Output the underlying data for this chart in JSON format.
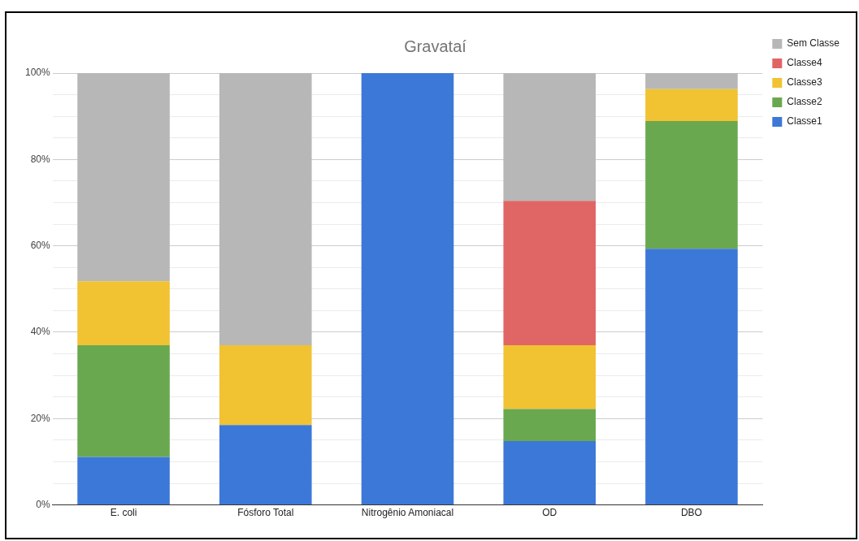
{
  "chart_data": {
    "type": "bar",
    "title": "Gravataí",
    "stacked": true,
    "categories": [
      "E. coli",
      "Fósforo Total",
      "Nitrogênio Amoniacal",
      "OD",
      "DBO"
    ],
    "series": [
      {
        "name": "Classe1",
        "color": "#3c78d8",
        "values": [
          11.1,
          18.5,
          100,
          14.8,
          59.3
        ]
      },
      {
        "name": "Classe2",
        "color": "#6aa84f",
        "values": [
          25.9,
          0,
          0,
          7.4,
          29.6
        ]
      },
      {
        "name": "Classe3",
        "color": "#f1c232",
        "values": [
          14.8,
          18.5,
          0,
          14.8,
          7.4
        ]
      },
      {
        "name": "Classe4",
        "color": "#e06666",
        "values": [
          0,
          0,
          0,
          33.4,
          0
        ]
      },
      {
        "name": "Sem Classe",
        "color": "#b7b7b7",
        "values": [
          48.2,
          63,
          0,
          29.6,
          3.7
        ]
      }
    ],
    "ylim": [
      0,
      100
    ],
    "yticks": [
      {
        "value": 0,
        "label": "0%"
      },
      {
        "value": 5,
        "label": null
      },
      {
        "value": 10,
        "label": null
      },
      {
        "value": 15,
        "label": null
      },
      {
        "value": 20,
        "label": "20%"
      },
      {
        "value": 25,
        "label": null
      },
      {
        "value": 30,
        "label": null
      },
      {
        "value": 35,
        "label": null
      },
      {
        "value": 40,
        "label": "40%"
      },
      {
        "value": 45,
        "label": null
      },
      {
        "value": 50,
        "label": null
      },
      {
        "value": 55,
        "label": null
      },
      {
        "value": 60,
        "label": "60%"
      },
      {
        "value": 65,
        "label": null
      },
      {
        "value": 70,
        "label": null
      },
      {
        "value": 75,
        "label": null
      },
      {
        "value": 80,
        "label": "80%"
      },
      {
        "value": 85,
        "label": null
      },
      {
        "value": 90,
        "label": null
      },
      {
        "value": 95,
        "label": null
      },
      {
        "value": 100,
        "label": "100%"
      }
    ],
    "grid": "y",
    "legend": "top right"
  }
}
